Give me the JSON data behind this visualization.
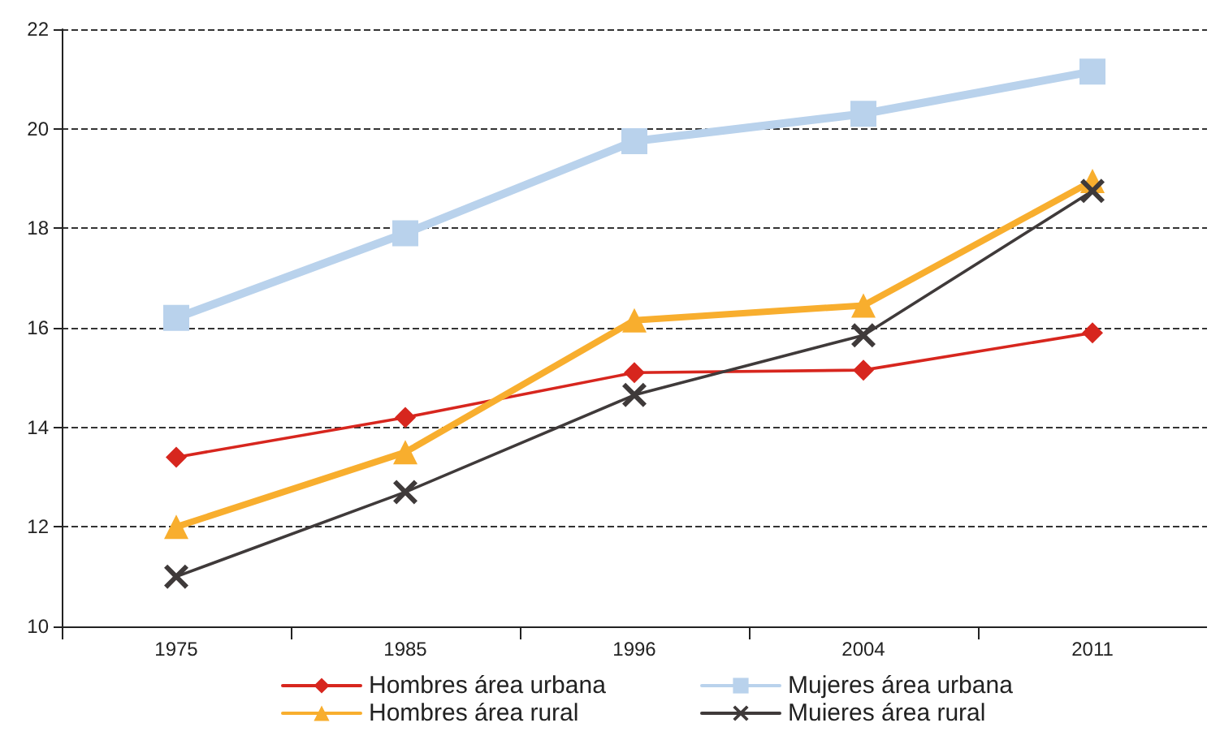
{
  "chart_data": {
    "type": "line",
    "categories": [
      "1975",
      "1985",
      "1996",
      "2004",
      "2011"
    ],
    "series": [
      {
        "name": "Hombres área urbana",
        "color": "#d7261e",
        "marker": "diamond",
        "values": [
          13.4,
          14.2,
          15.1,
          15.15,
          15.9
        ]
      },
      {
        "name": "Mujeres área urbana",
        "color": "#b9d2ec",
        "marker": "square",
        "values": [
          16.2,
          17.9,
          19.75,
          20.3,
          21.15
        ]
      },
      {
        "name": "Hombres área rural",
        "color": "#f8ae2e",
        "marker": "triangle",
        "values": [
          12.0,
          13.5,
          16.15,
          16.45,
          18.95
        ]
      },
      {
        "name": "Muieres área rural",
        "color": "#3f3a3a",
        "marker": "cross",
        "values": [
          11.0,
          12.7,
          14.65,
          15.85,
          18.75
        ]
      }
    ],
    "ylim": [
      10,
      22
    ],
    "yticks": [
      10,
      12,
      14,
      16,
      18,
      20,
      22
    ],
    "grid": "y",
    "legend": "bottom",
    "line_style": "solid"
  }
}
